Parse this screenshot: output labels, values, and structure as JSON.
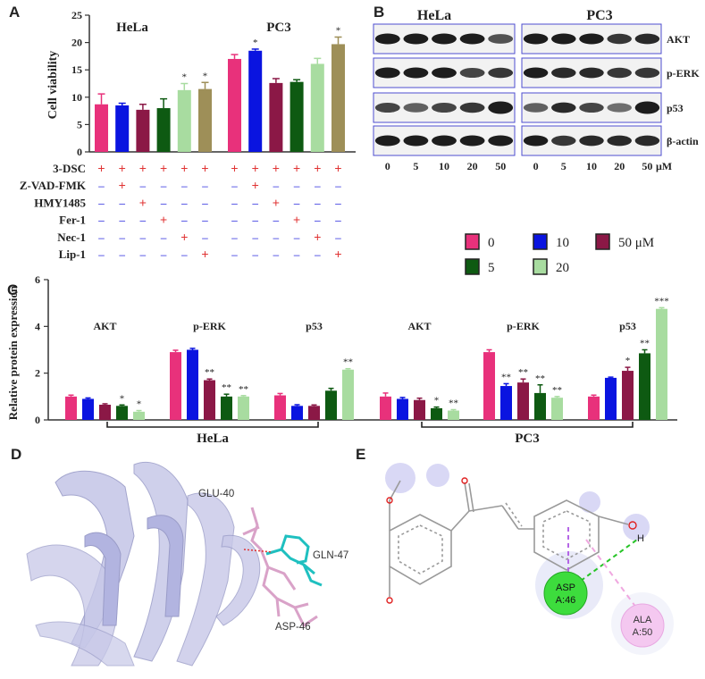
{
  "panel_letters": [
    "A",
    "B",
    "C",
    "D",
    "E"
  ],
  "colors": {
    "c0": "#e8317b",
    "c5": "#0e5a12",
    "c10": "#0a14e0",
    "c20": "#a8dca0",
    "c50": "#8b1846",
    "gray": "#9e8f58",
    "blot_border": "#4d4dd0"
  },
  "panelA": {
    "chart_data": {
      "type": "bar",
      "ylabel": "Cell viability",
      "ylim": [
        0,
        25
      ],
      "yticks": [
        "0",
        "5",
        "10",
        "15",
        "20",
        "25"
      ],
      "groups": [
        {
          "name": "HeLa",
          "values": [
            8.7,
            8.5,
            7.7,
            8.0,
            11.3,
            11.5
          ],
          "errors": [
            1.9,
            0.4,
            1.0,
            1.7,
            1.2,
            1.2
          ],
          "stars": [
            "",
            "",
            "",
            "",
            "*",
            "*"
          ]
        },
        {
          "name": "PC3",
          "values": [
            17.0,
            18.5,
            12.6,
            12.8,
            16.1,
            19.7
          ],
          "errors": [
            0.8,
            0.3,
            0.8,
            0.4,
            1.0,
            1.3
          ],
          "stars": [
            "",
            "*",
            "",
            "",
            "",
            "*"
          ]
        }
      ],
      "bar_colors": [
        "#e8317b",
        "#0a14e0",
        "#8b1846",
        "#0e5a12",
        "#a8dca0",
        "#9e8f58"
      ]
    },
    "treatments": {
      "names": [
        "3-DSC",
        "Z-VAD-FMK",
        "HMY1485",
        "Fer-1",
        "Nec-1",
        "Lip-1"
      ],
      "matrix": [
        [
          "+",
          "+",
          "+",
          "+",
          "+",
          "+"
        ],
        [
          "–",
          "+",
          "–",
          "–",
          "–",
          "–"
        ],
        [
          "–",
          "–",
          "+",
          "–",
          "–",
          "–"
        ],
        [
          "–",
          "–",
          "–",
          "+",
          "–",
          "–"
        ],
        [
          "–",
          "–",
          "–",
          "–",
          "+",
          "–"
        ],
        [
          "–",
          "–",
          "–",
          "–",
          "–",
          "+"
        ]
      ]
    }
  },
  "panelB": {
    "cell_titles": [
      "HeLa",
      "PC3"
    ],
    "proteins": [
      "AKT",
      "p-ERK",
      "p53",
      "β-actin"
    ],
    "doses": [
      "0",
      "5",
      "10",
      "20",
      "50"
    ],
    "unit": "μM"
  },
  "legend": {
    "items": [
      {
        "label": "0",
        "color": "#e8317b"
      },
      {
        "label": "10",
        "color": "#0a14e0"
      },
      {
        "label": "50 μM",
        "color": "#8b1846"
      },
      {
        "label": "5",
        "color": "#0e5a12"
      },
      {
        "label": "20",
        "color": "#a8dca0"
      }
    ]
  },
  "panelC": {
    "chart_data": {
      "type": "bar",
      "ylabel": "Relative protein expression",
      "ylim": [
        0,
        6
      ],
      "yticks": [
        "0",
        "2",
        "4",
        "6"
      ],
      "series_order": [
        "0",
        "10",
        "50 μM",
        "5",
        "20"
      ],
      "groups": [
        {
          "cell": "HeLa",
          "protein": "AKT",
          "values": [
            1.0,
            0.9,
            0.65,
            0.6,
            0.35
          ],
          "errors": [
            0.06,
            0.04,
            0.04,
            0.04,
            0.05
          ],
          "stars": [
            "",
            "",
            "",
            "*",
            "*"
          ]
        },
        {
          "cell": "HeLa",
          "protein": "p-ERK",
          "values": [
            2.9,
            3.0,
            1.7,
            1.0,
            1.0
          ],
          "errors": [
            0.08,
            0.06,
            0.05,
            0.1,
            0.04
          ],
          "stars": [
            "",
            "",
            "**",
            "**",
            "**"
          ]
        },
        {
          "cell": "HeLa",
          "protein": "p53",
          "values": [
            1.05,
            0.6,
            0.6,
            1.25,
            2.15
          ],
          "errors": [
            0.08,
            0.05,
            0.04,
            0.1,
            0.04
          ],
          "stars": [
            "",
            "",
            "",
            "",
            "**"
          ]
        },
        {
          "cell": "PC3",
          "protein": "AKT",
          "values": [
            1.0,
            0.9,
            0.85,
            0.5,
            0.4
          ],
          "errors": [
            0.15,
            0.06,
            0.08,
            0.05,
            0.04
          ],
          "stars": [
            "",
            "",
            "",
            "*",
            "**"
          ]
        },
        {
          "cell": "PC3",
          "protein": "p-ERK",
          "values": [
            2.9,
            1.45,
            1.6,
            1.15,
            0.95
          ],
          "errors": [
            0.1,
            0.1,
            0.15,
            0.35,
            0.05
          ],
          "stars": [
            "",
            "**",
            "**",
            "**",
            "**"
          ]
        },
        {
          "cell": "PC3",
          "protein": "p53",
          "values": [
            1.0,
            1.8,
            2.1,
            2.85,
            4.75
          ],
          "errors": [
            0.06,
            0.03,
            0.15,
            0.15,
            0.05
          ],
          "stars": [
            "",
            "",
            "*",
            "**",
            "***"
          ]
        }
      ],
      "cell_labels": [
        "HeLa",
        "PC3"
      ]
    }
  },
  "panelD": {
    "residues": [
      "GLU-40",
      "GLN-47",
      "ASP-46"
    ]
  },
  "panelE": {
    "atom_h": "H",
    "residues": [
      {
        "label_top": "ASP",
        "label_bottom": "A:46",
        "color": "#3ddc3d"
      },
      {
        "label_top": "ALA",
        "label_bottom": "A:50",
        "color": "#f4c8f0"
      }
    ]
  }
}
